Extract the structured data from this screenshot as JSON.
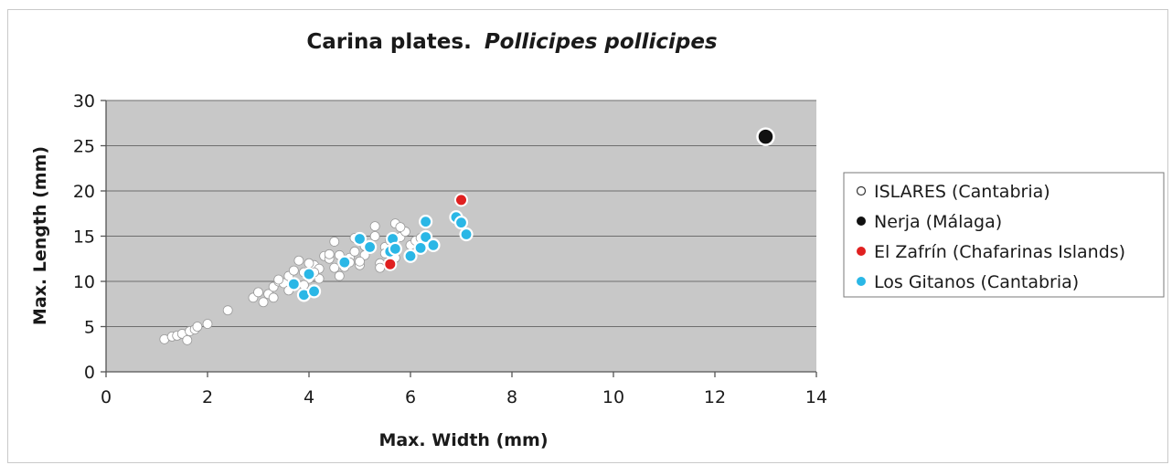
{
  "chart_data": {
    "type": "scatter",
    "title": "Carina plates.",
    "title_italic": "Pollicipes pollicipes",
    "xlabel": "Max. Width (mm)",
    "ylabel": "Max. Length (mm)",
    "xlim": [
      0,
      14
    ],
    "ylim": [
      0,
      30
    ],
    "xticks": [
      0,
      2,
      4,
      6,
      8,
      10,
      12,
      14
    ],
    "yticks": [
      0,
      5,
      10,
      15,
      20,
      25,
      30
    ],
    "grid": "horizontal",
    "plot_background": "#c8c8c8",
    "legend_position": "right",
    "series": [
      {
        "name": "ISLARES (Cantabria)",
        "marker": "circle-white",
        "color": "#ffffff",
        "x": [
          1.15,
          1.3,
          1.4,
          1.5,
          1.6,
          1.65,
          1.75,
          1.8,
          2.0,
          2.4,
          2.9,
          3.0,
          3.1,
          3.2,
          3.3,
          3.4,
          3.5,
          3.6,
          3.7,
          3.8,
          3.9,
          4.0,
          4.1,
          4.2,
          4.3,
          4.4,
          4.5,
          4.6,
          4.7,
          4.8,
          4.9,
          5.0,
          5.1,
          5.2,
          5.3,
          5.4,
          5.5,
          5.6,
          5.7,
          5.8,
          5.9,
          6.0,
          3.3,
          3.6,
          3.9,
          4.2,
          4.5,
          4.8,
          5.1,
          5.4,
          5.7,
          6.1,
          4.0,
          4.4,
          4.9,
          5.3,
          5.8,
          3.4,
          4.1,
          4.6,
          5.0,
          5.5,
          6.2
        ],
        "y": [
          3.6,
          3.9,
          4.0,
          4.2,
          3.5,
          4.5,
          4.7,
          5.0,
          5.3,
          6.8,
          8.2,
          8.8,
          7.7,
          8.6,
          9.4,
          10.0,
          9.8,
          10.6,
          11.2,
          12.3,
          11.0,
          10.3,
          11.8,
          11.4,
          12.8,
          12.5,
          14.4,
          10.6,
          11.6,
          12.6,
          13.3,
          11.8,
          12.9,
          13.6,
          16.1,
          12.0,
          13.8,
          14.5,
          16.4,
          14.9,
          15.5,
          14.0,
          8.2,
          9.0,
          9.6,
          10.3,
          11.5,
          12.1,
          13.9,
          11.5,
          12.6,
          14.5,
          12.0,
          13.0,
          14.8,
          15.0,
          16.0,
          10.2,
          11.0,
          12.9,
          12.2,
          13.1,
          14.8
        ]
      },
      {
        "name": "Nerja (Málaga)",
        "marker": "circle-black",
        "color": "#111111",
        "x": [
          13.0
        ],
        "y": [
          26.0
        ]
      },
      {
        "name": "El Zafrín (Chafarinas Islands)",
        "marker": "circle-red",
        "color": "#e02020",
        "x": [
          5.6,
          7.0
        ],
        "y": [
          11.9,
          19.0
        ]
      },
      {
        "name": "Los Gitanos (Cantabria)",
        "marker": "circle-cyan",
        "color": "#2ab7e6",
        "x": [
          3.7,
          3.9,
          4.0,
          4.1,
          4.7,
          5.0,
          5.2,
          5.6,
          5.65,
          5.7,
          6.0,
          6.2,
          6.3,
          6.3,
          6.45,
          6.9,
          7.0,
          7.1
        ],
        "y": [
          9.7,
          8.5,
          10.8,
          8.9,
          12.1,
          14.7,
          13.8,
          13.3,
          14.7,
          13.6,
          12.8,
          13.7,
          16.6,
          14.9,
          14.0,
          17.1,
          16.5,
          15.2
        ]
      }
    ]
  }
}
